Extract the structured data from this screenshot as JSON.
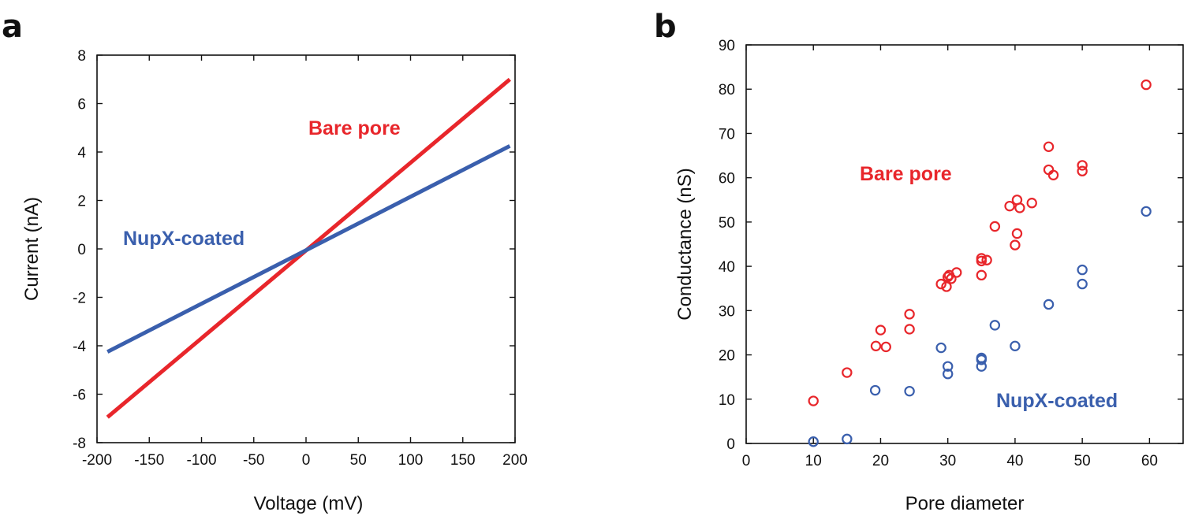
{
  "chart_data": [
    {
      "panel": "a",
      "type": "line",
      "xlabel": "Voltage (mV)",
      "ylabel": "Current (nA)",
      "xlim": [
        -200,
        200
      ],
      "ylim": [
        -8,
        8
      ],
      "xticks": [
        -200,
        -150,
        -100,
        -50,
        0,
        50,
        100,
        150,
        200
      ],
      "yticks": [
        -8,
        -6,
        -4,
        -2,
        0,
        2,
        4,
        6,
        8
      ],
      "grid": false,
      "series": [
        {
          "name": "Bare pore",
          "color": "#e8262b",
          "x": [
            -190,
            195
          ],
          "y": [
            -6.95,
            7.0
          ]
        },
        {
          "name": "NupX-coated",
          "color": "#3a5fad",
          "x": [
            -190,
            195
          ],
          "y": [
            -4.25,
            4.25
          ]
        }
      ]
    },
    {
      "panel": "b",
      "type": "scatter",
      "xlabel": "Pore diameter",
      "ylabel": "Conductance (nS)",
      "xlim": [
        0,
        65
      ],
      "ylim": [
        0,
        90
      ],
      "xticks": [
        0,
        10,
        20,
        30,
        40,
        50,
        60
      ],
      "yticks": [
        0,
        10,
        20,
        30,
        40,
        50,
        60,
        70,
        80,
        90
      ],
      "grid": false,
      "series": [
        {
          "name": "Bare pore",
          "color": "#e8262b",
          "x": [
            10,
            15,
            19.3,
            20,
            20.8,
            24.3,
            24.3,
            29,
            29.8,
            30,
            30.2,
            30.5,
            31.3,
            35,
            35,
            35,
            35.8,
            37,
            39.2,
            40,
            40.3,
            40.3,
            40.7,
            42.5,
            45,
            45,
            45.7,
            50,
            50,
            59.5
          ],
          "y": [
            9.6,
            16,
            22,
            25.6,
            21.8,
            25.8,
            29.2,
            36,
            35.4,
            37.6,
            38,
            37.2,
            38.6,
            38,
            41.2,
            41.8,
            41.4,
            49,
            53.6,
            44.8,
            47.4,
            55,
            53.2,
            54.3,
            67,
            61.8,
            60.6,
            62.8,
            61.5,
            81
          ]
        },
        {
          "name": "NupX-coated",
          "color": "#3a5fad",
          "x": [
            10,
            15,
            19.2,
            24.3,
            29,
            30,
            30,
            35,
            35,
            35,
            37,
            40,
            45,
            50,
            50,
            59.5
          ],
          "y": [
            0.4,
            1,
            12,
            11.8,
            21.6,
            17.4,
            15.7,
            19.3,
            17.4,
            18.9,
            26.7,
            22,
            31.4,
            39.2,
            36,
            52.4
          ]
        }
      ]
    }
  ]
}
